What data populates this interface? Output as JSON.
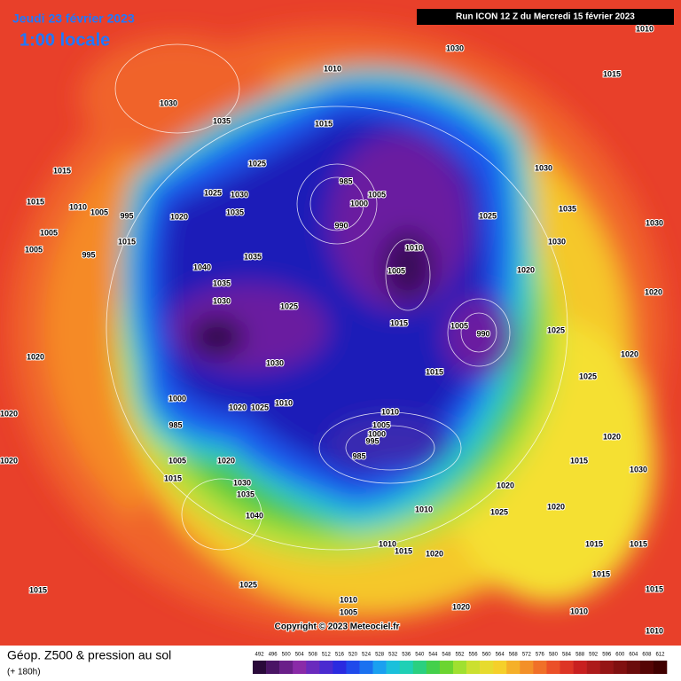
{
  "header": {
    "date": "Jeudi 23 février 2023",
    "time": "1:00 locale",
    "run": "Run ICON 12 Z du Mercredi 15 février 2023"
  },
  "footer": {
    "title": "Géop. Z500 & pression au sol",
    "lead": "(+ 180h)",
    "copyright": "Copyright © 2023 Meteociel.fr"
  },
  "colorbar": {
    "ticks": [
      492,
      496,
      500,
      504,
      508,
      512,
      516,
      520,
      524,
      528,
      532,
      536,
      540,
      544,
      548,
      552,
      556,
      560,
      564,
      568,
      572,
      576,
      580,
      584,
      588,
      592,
      596,
      600,
      604,
      608,
      612
    ]
  },
  "isobar_labels": [
    1010,
    1030,
    1010,
    1015,
    1030,
    1035,
    1015,
    1015,
    1015,
    1025,
    1025,
    1030,
    1020,
    1035,
    1040,
    1035,
    1035,
    1030,
    1025,
    1030,
    985,
    1000,
    1005,
    990,
    1010,
    1005,
    1015,
    1015,
    990,
    1005,
    1025,
    1030,
    1035,
    1030,
    1020,
    1025,
    1020,
    1025,
    1020,
    1015,
    1015,
    1015,
    1015,
    1010,
    1020,
    1010,
    1020,
    1025,
    1020,
    1015,
    1010,
    1020,
    1010,
    1005,
    1000,
    995,
    985,
    1020,
    1025,
    1010,
    1000,
    985,
    1005,
    1015,
    1020,
    1030,
    1035,
    1040,
    1025,
    1015,
    1010,
    1005,
    1020,
    1020,
    1020,
    1005,
    1005,
    1010,
    1005,
    995,
    995,
    1015,
    1030,
    1030,
    1020,
    1015,
    1010
  ]
}
